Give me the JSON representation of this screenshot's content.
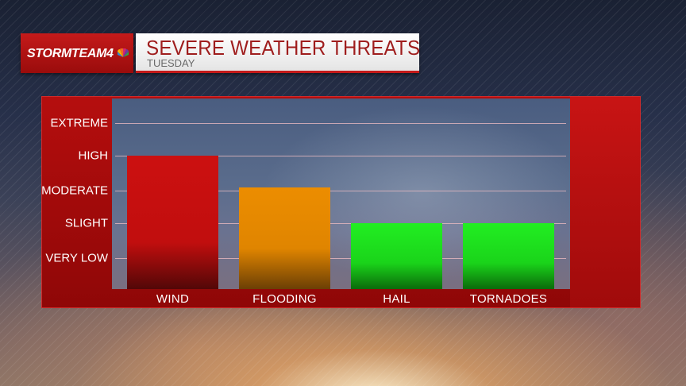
{
  "header": {
    "logo_text": "STORMTEAM4",
    "title": "SEVERE WEATHER THREATS",
    "subtitle": "TUESDAY"
  },
  "colors": {
    "brand_red": "#c41a1a",
    "title_red": "#9f1d1d",
    "wind_bar": "#cc1010",
    "flooding_bar": "#e98b00",
    "low_bar": "#1fe81f"
  },
  "chart_data": {
    "type": "bar",
    "title": "SEVERE WEATHER THREATS",
    "subtitle": "TUESDAY",
    "categories": [
      "WIND",
      "FLOODING",
      "HAIL",
      "TORNADOES"
    ],
    "levels": [
      "VERY LOW",
      "SLIGHT",
      "MODERATE",
      "HIGH",
      "EXTREME"
    ],
    "values": [
      3.0,
      2.1,
      1.0,
      1.0
    ],
    "ylim": [
      0,
      4
    ],
    "value_note": "values on ordinal level scale: 0 = VERY LOW, 1 = SLIGHT, 2 = MODERATE, 3 = HIGH, 4 = EXTREME",
    "bar_colors": [
      "#cc1010",
      "#e98b00",
      "#1fe81f",
      "#1fe81f"
    ],
    "grid": true
  }
}
